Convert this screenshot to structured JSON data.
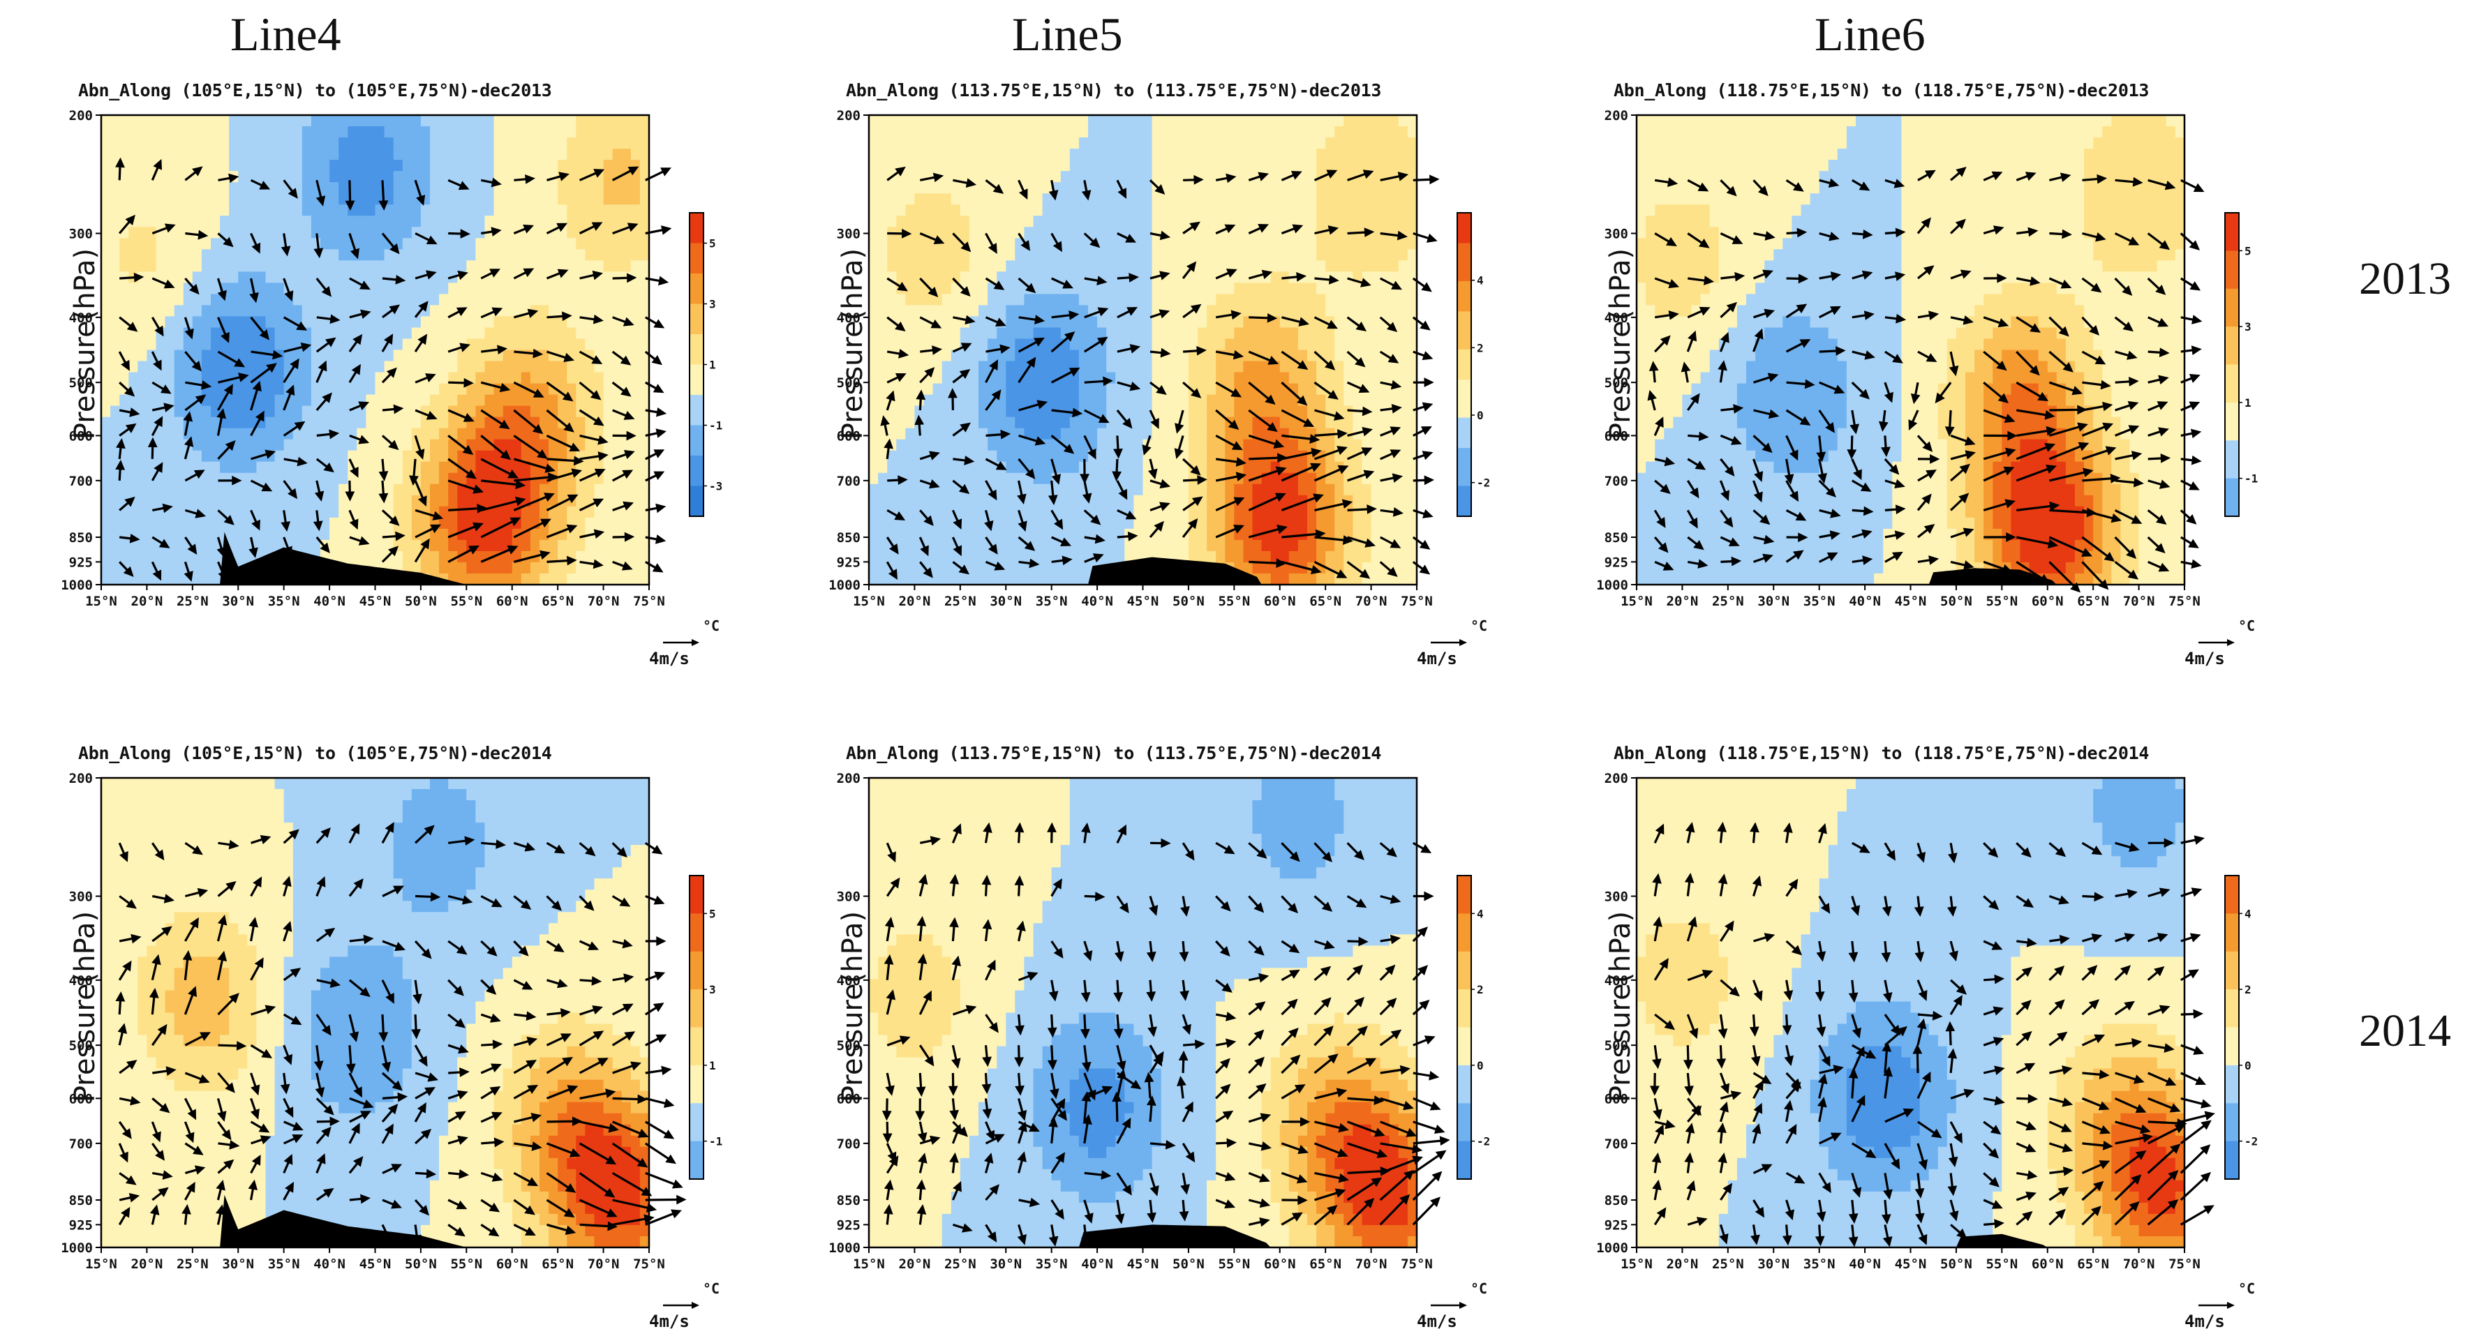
{
  "column_titles": [
    "Line4",
    "Line5",
    "Line6"
  ],
  "row_labels": [
    "2013",
    "2014"
  ],
  "chart_data": [
    {
      "type": "heatmap",
      "title": "Abn_Along (105°E,15°N) to (105°E,75°N)-dec2013",
      "ylabel": "Pressure(hPa)",
      "unit": "°C",
      "ref_vector": "4m/s",
      "x_ticks": [
        "15°N",
        "20°N",
        "25°N",
        "30°N",
        "35°N",
        "40°N",
        "45°N",
        "50°N",
        "55°N",
        "60°N",
        "65°N",
        "70°N",
        "75°N"
      ],
      "y_ticks": [
        "200",
        "300",
        "400",
        "500",
        "600",
        "700",
        "850",
        "925",
        "1000"
      ],
      "colorbar_ticks": [
        "5",
        "3",
        "1",
        "-1",
        "-3"
      ],
      "colorbar_range": [
        -4,
        6
      ],
      "field_centers": [
        {
          "lat": 20,
          "p": 330,
          "v": 1.2
        },
        {
          "lat": 30,
          "p": 480,
          "v": -3
        },
        {
          "lat": 44,
          "p": 240,
          "v": -2.5
        },
        {
          "lat": 57,
          "p": 800,
          "v": 5.5
        },
        {
          "lat": 62,
          "p": 560,
          "v": 3
        },
        {
          "lat": 72,
          "p": 250,
          "v": 2.2
        }
      ],
      "terrain": [
        {
          "lat": 28,
          "p": 800
        },
        {
          "lat": 30,
          "p": 940
        },
        {
          "lat": 35,
          "p": 880
        },
        {
          "lat": 42,
          "p": 930
        },
        {
          "lat": 50,
          "p": 960
        },
        {
          "lat": 55,
          "p": 1000
        }
      ],
      "wind_u_bias": 0.3,
      "wind_w_bias": 0.1
    },
    {
      "type": "heatmap",
      "title": "Abn_Along (113.75°E,15°N) to (113.75°E,75°N)-dec2013",
      "ylabel": "Pressure(hPa)",
      "unit": "°C",
      "ref_vector": "4m/s",
      "x_ticks": [
        "15°N",
        "20°N",
        "25°N",
        "30°N",
        "35°N",
        "40°N",
        "45°N",
        "50°N",
        "55°N",
        "60°N",
        "65°N",
        "70°N",
        "75°N"
      ],
      "y_ticks": [
        "200",
        "300",
        "400",
        "500",
        "600",
        "700",
        "850",
        "925",
        "1000"
      ],
      "colorbar_ticks": [
        "4",
        "2",
        "0",
        "-2"
      ],
      "colorbar_range": [
        -3,
        6
      ],
      "field_centers": [
        {
          "lat": 34,
          "p": 500,
          "v": -2.8
        },
        {
          "lat": 22,
          "p": 320,
          "v": 1.5
        },
        {
          "lat": 60,
          "p": 820,
          "v": 5.5
        },
        {
          "lat": 58,
          "p": 500,
          "v": 3
        },
        {
          "lat": 70,
          "p": 260,
          "v": 2
        }
      ],
      "terrain": [
        {
          "lat": 39,
          "p": 940
        },
        {
          "lat": 46,
          "p": 910
        },
        {
          "lat": 54,
          "p": 930
        },
        {
          "lat": 58,
          "p": 980
        }
      ],
      "wind_u_bias": 0.5,
      "wind_w_bias": 0.4
    },
    {
      "type": "heatmap",
      "title": "Abn_Along (118.75°E,15°N) to (118.75°E,75°N)-dec2013",
      "ylabel": "Pressure(hPa)",
      "unit": "°C",
      "ref_vector": "4m/s",
      "x_ticks": [
        "15°N",
        "20°N",
        "25°N",
        "30°N",
        "35°N",
        "40°N",
        "45°N",
        "50°N",
        "55°N",
        "60°N",
        "65°N",
        "70°N",
        "75°N"
      ],
      "y_ticks": [
        "200",
        "300",
        "400",
        "500",
        "600",
        "700",
        "850",
        "925",
        "1000"
      ],
      "colorbar_ticks": [
        "5",
        "3",
        "1",
        "-1"
      ],
      "colorbar_range": [
        -2,
        6
      ],
      "field_centers": [
        {
          "lat": 32,
          "p": 520,
          "v": -2
        },
        {
          "lat": 20,
          "p": 330,
          "v": 1.5
        },
        {
          "lat": 60,
          "p": 830,
          "v": 6
        },
        {
          "lat": 57,
          "p": 520,
          "v": 3.5
        },
        {
          "lat": 70,
          "p": 260,
          "v": 2
        }
      ],
      "terrain": [
        {
          "lat": 47,
          "p": 960
        },
        {
          "lat": 52,
          "p": 945
        },
        {
          "lat": 57,
          "p": 950
        },
        {
          "lat": 61,
          "p": 990
        }
      ],
      "wind_u_bias": 0.6,
      "wind_w_bias": 0.5
    },
    {
      "type": "heatmap",
      "title": "Abn_Along (105°E,15°N) to (105°E,75°N)-dec2014",
      "ylabel": "Pressure(hPa)",
      "unit": "°C",
      "ref_vector": "4m/s",
      "x_ticks": [
        "15°N",
        "20°N",
        "25°N",
        "30°N",
        "35°N",
        "40°N",
        "45°N",
        "50°N",
        "55°N",
        "60°N",
        "65°N",
        "70°N",
        "75°N"
      ],
      "y_ticks": [
        "200",
        "300",
        "400",
        "500",
        "600",
        "700",
        "850",
        "925",
        "1000"
      ],
      "colorbar_ticks": [
        "5",
        "3",
        "1",
        "-1"
      ],
      "colorbar_range": [
        -2,
        6
      ],
      "field_centers": [
        {
          "lat": 26,
          "p": 430,
          "v": 2.5
        },
        {
          "lat": 43,
          "p": 480,
          "v": -2
        },
        {
          "lat": 52,
          "p": 250,
          "v": -1.5
        },
        {
          "lat": 72,
          "p": 850,
          "v": 5
        },
        {
          "lat": 66,
          "p": 650,
          "v": 3
        }
      ],
      "terrain": [
        {
          "lat": 28,
          "p": 800
        },
        {
          "lat": 30,
          "p": 940
        },
        {
          "lat": 35,
          "p": 880
        },
        {
          "lat": 42,
          "p": 930
        },
        {
          "lat": 50,
          "p": 960
        },
        {
          "lat": 55,
          "p": 1000
        }
      ],
      "wind_u_bias": 0.2,
      "wind_w_bias": 0.2
    },
    {
      "type": "heatmap",
      "title": "Abn_Along (113.75°E,15°N) to (113.75°E,75°N)-dec2014",
      "ylabel": "Pressure(hPa)",
      "unit": "°C",
      "ref_vector": "4m/s",
      "x_ticks": [
        "15°N",
        "20°N",
        "25°N",
        "30°N",
        "35°N",
        "40°N",
        "45°N",
        "50°N",
        "55°N",
        "60°N",
        "65°N",
        "70°N",
        "75°N"
      ],
      "y_ticks": [
        "200",
        "300",
        "400",
        "500",
        "600",
        "700",
        "850",
        "925",
        "1000"
      ],
      "colorbar_ticks": [
        "4",
        "2",
        "0",
        "-2"
      ],
      "colorbar_range": [
        -3,
        5
      ],
      "field_centers": [
        {
          "lat": 40,
          "p": 620,
          "v": -2.5
        },
        {
          "lat": 20,
          "p": 420,
          "v": 1.5
        },
        {
          "lat": 72,
          "p": 850,
          "v": 5
        },
        {
          "lat": 66,
          "p": 650,
          "v": 3
        },
        {
          "lat": 62,
          "p": 230,
          "v": -1.5
        }
      ],
      "terrain": [
        {
          "lat": 38,
          "p": 950
        },
        {
          "lat": 46,
          "p": 925
        },
        {
          "lat": 54,
          "p": 930
        },
        {
          "lat": 59,
          "p": 990
        }
      ],
      "wind_u_bias": -0.4,
      "wind_w_bias": 0.5
    },
    {
      "type": "heatmap",
      "title": "Abn_Along (118.75°E,15°N) to (118.75°E,75°N)-dec2014",
      "ylabel": "Pressure(hPa)",
      "unit": "°C",
      "ref_vector": "4m/s",
      "x_ticks": [
        "15°N",
        "20°N",
        "25°N",
        "30°N",
        "35°N",
        "40°N",
        "45°N",
        "50°N",
        "55°N",
        "60°N",
        "65°N",
        "70°N",
        "75°N"
      ],
      "y_ticks": [
        "200",
        "300",
        "400",
        "500",
        "600",
        "700",
        "850",
        "925",
        "1000"
      ],
      "colorbar_ticks": [
        "4",
        "2",
        "0",
        "-2"
      ],
      "colorbar_range": [
        -3,
        5
      ],
      "field_centers": [
        {
          "lat": 42,
          "p": 600,
          "v": -2.8
        },
        {
          "lat": 20,
          "p": 400,
          "v": 1.5
        },
        {
          "lat": 73,
          "p": 840,
          "v": 4.5
        },
        {
          "lat": 68,
          "p": 650,
          "v": 2.5
        },
        {
          "lat": 70,
          "p": 220,
          "v": -1.5
        }
      ],
      "terrain": [
        {
          "lat": 50,
          "p": 965
        },
        {
          "lat": 55,
          "p": 955
        },
        {
          "lat": 60,
          "p": 995
        }
      ],
      "wind_u_bias": -0.3,
      "wind_w_bias": 0.4
    }
  ]
}
